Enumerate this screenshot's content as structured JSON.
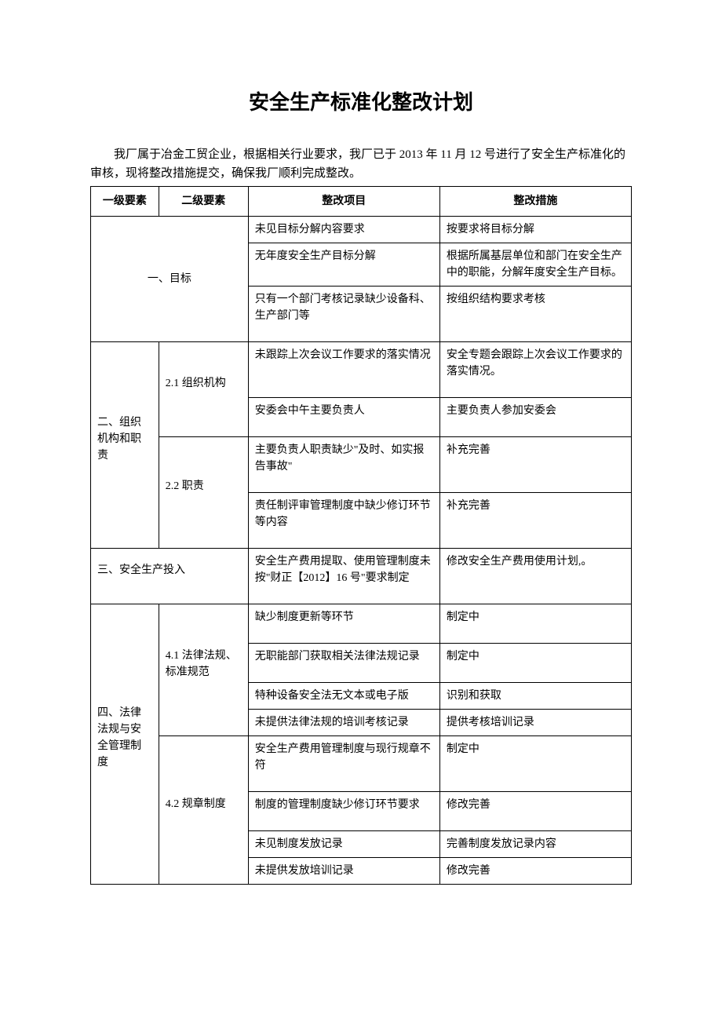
{
  "title": "安全生产标准化整改计划",
  "intro": "我厂属于冶金工贸企业，根据相关行业要求，我厂已于 2013 年 11 月 12 号进行了安全生产标准化的审核，现将整改措施提交，确保我厂顺利完成整改。",
  "headers": {
    "h1": "一级要素",
    "h2": "二级要素",
    "h3": "整改项目",
    "h4": "整改措施"
  },
  "sections": {
    "s1": {
      "label": "一、目标",
      "rows": [
        {
          "item": "未见目标分解内容要求",
          "measure": "按要求将目标分解"
        },
        {
          "item": "无年度安全生产目标分解",
          "measure": "根据所属基层单位和部门在安全生产中的职能，分解年度安全生产目标。"
        },
        {
          "item": "只有一个部门考核记录缺少设备科、生产部门等",
          "measure": "按组织结构要求考核"
        }
      ]
    },
    "s2": {
      "label": "二、组织机构和职责",
      "sub1": {
        "label": "2.1 组织机构",
        "rows": [
          {
            "item": "未跟踪上次会议工作要求的落实情况",
            "measure": "安全专题会跟踪上次会议工作要求的落实情况。"
          },
          {
            "item": "安委会中午主要负责人",
            "measure": "主要负责人参加安委会"
          }
        ]
      },
      "sub2": {
        "label": "2.2 职责",
        "rows": [
          {
            "item": "主要负责人职责缺少\"及时、如实报告事故\"",
            "measure": "补充完善"
          },
          {
            "item": "责任制评审管理制度中缺少修订环节等内容",
            "measure": "补充完善"
          }
        ]
      }
    },
    "s3": {
      "label": "三、安全生产投入",
      "rows": [
        {
          "item": "安全生产费用提取、使用管理制度未按\"财正【2012】16 号\"要求制定",
          "measure": "修改安全生产费用使用计划,。"
        }
      ]
    },
    "s4": {
      "label": "四、法律法规与安全管理制度",
      "sub1": {
        "label": "4.1 法律法规、标准规范",
        "rows": [
          {
            "item": "缺少制度更新等环节",
            "measure": "制定中"
          },
          {
            "item": "无职能部门获取相关法律法规记录",
            "measure": "制定中"
          },
          {
            "item": "特种设备安全法无文本或电子版",
            "measure": "识别和获取"
          },
          {
            "item": "未提供法律法规的培训考核记录",
            "measure": "提供考核培训记录"
          }
        ]
      },
      "sub2": {
        "label": "4.2 规章制度",
        "rows": [
          {
            "item": "安全生产费用管理制度与现行规章不符",
            "measure": "制定中"
          },
          {
            "item": "制度的管理制度缺少修订环节要求",
            "measure": "修改完善"
          },
          {
            "item": "未见制度发放记录",
            "measure": "完善制度发放记录内容"
          },
          {
            "item": "未提供发放培训记录",
            "measure": "修改完善"
          }
        ]
      }
    }
  }
}
